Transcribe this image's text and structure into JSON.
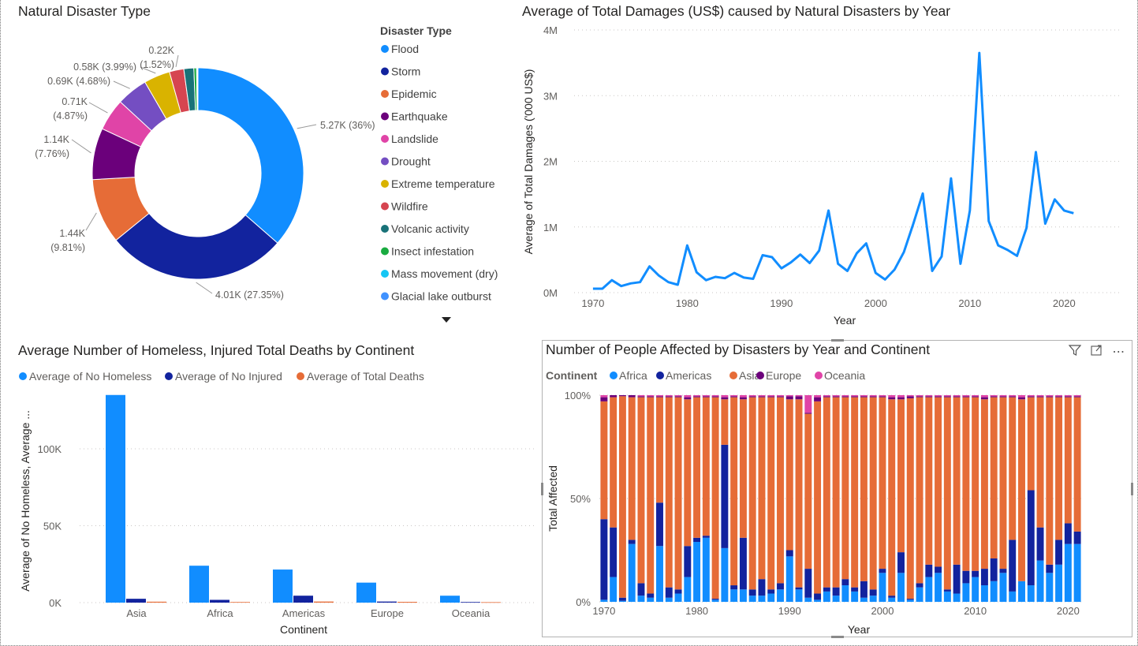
{
  "colors": {
    "flood": "#118DFF",
    "storm": "#12239E",
    "epidemic": "#E66C37",
    "earthquake": "#6B007B",
    "landslide": "#E044A7",
    "drought": "#744EC2",
    "extreme": "#D9B300",
    "wildfire": "#D64550",
    "volcanic": "#197278",
    "insect": "#1AAB40",
    "mass": "#15C6F4",
    "glacial": "#4092FF",
    "africa": "#118DFF",
    "americas": "#12239E",
    "asia": "#E66C37",
    "europe": "#6B007B",
    "oceania": "#E044A7",
    "homeless": "#118DFF",
    "injured": "#12239E",
    "deaths": "#E66C37"
  },
  "donut": {
    "title": "Natural Disaster Type",
    "legend_title": "Disaster Type",
    "legend_more_icon": "caret-down-icon",
    "legend": [
      "Flood",
      "Storm",
      "Epidemic",
      "Earthquake",
      "Landslide",
      "Drought",
      "Extreme temperature",
      "Wildfire",
      "Volcanic activity",
      "Insect infestation",
      "Mass movement (dry)",
      "Glacial lake outburst"
    ],
    "chart_data": {
      "type": "pie",
      "title": "Natural Disaster Type",
      "slices": [
        {
          "name": "Flood",
          "value": 5270,
          "pct": 36
        },
        {
          "name": "Storm",
          "value": 4010,
          "pct": 27.35
        },
        {
          "name": "Epidemic",
          "value": 1440,
          "pct": 9.81
        },
        {
          "name": "Earthquake",
          "value": 1140,
          "pct": 7.76
        },
        {
          "name": "Landslide",
          "value": 710,
          "pct": 4.87
        },
        {
          "name": "Drought",
          "value": 690,
          "pct": 4.68
        },
        {
          "name": "Extreme temperature",
          "value": 580,
          "pct": 3.99
        },
        {
          "name": "Wildfire",
          "value": 320,
          "pct": 2.2
        },
        {
          "name": "Volcanic activity",
          "value": 220,
          "pct": 1.52
        },
        {
          "name": "Insect infestation",
          "value": 60,
          "pct": 0.4
        },
        {
          "name": "Mass movement (dry)",
          "value": 20,
          "pct": 0.15
        },
        {
          "name": "Glacial lake outburst",
          "value": 10,
          "pct": 0.05
        }
      ],
      "labels": [
        {
          "lines": [
            "5.27K (36%)"
          ]
        },
        {
          "lines": [
            "4.01K (27.35%)"
          ]
        },
        {
          "lines": [
            "1.44K",
            "(9.81%)"
          ]
        },
        {
          "lines": [
            "1.14K",
            "(7.76%)"
          ]
        },
        {
          "lines": [
            "0.71K",
            "(4.87%)"
          ]
        },
        {
          "lines": [
            "0.69K (4.68%)"
          ]
        },
        {
          "lines": [
            "0.58K (3.99%)"
          ]
        },
        {
          "lines": [
            "0.22K",
            "(1.52%)"
          ]
        }
      ]
    }
  },
  "line": {
    "title": "Average of Total Damages (US$) caused by Natural Disasters by Year",
    "chart_data": {
      "type": "line",
      "title": "Average of Total Damages (US$) caused by Natural Disasters by Year",
      "xlabel": "Year",
      "ylabel": "Average of Total Damages ('000 US$)",
      "xlim": [
        1968,
        2026
      ],
      "ylim": [
        0,
        4000000
      ],
      "x_ticks": [
        1970,
        1980,
        1990,
        2000,
        2010,
        2020
      ],
      "y_ticks": [
        {
          "v": 0,
          "label": "0M"
        },
        {
          "v": 1000000,
          "label": "1M"
        },
        {
          "v": 2000000,
          "label": "2M"
        },
        {
          "v": 3000000,
          "label": "3M"
        },
        {
          "v": 4000000,
          "label": "4M"
        }
      ],
      "grid": true,
      "x": [
        1970,
        1971,
        1972,
        1973,
        1974,
        1975,
        1976,
        1977,
        1978,
        1979,
        1980,
        1981,
        1982,
        1983,
        1984,
        1985,
        1986,
        1987,
        1988,
        1989,
        1990,
        1991,
        1992,
        1993,
        1994,
        1995,
        1996,
        1997,
        1998,
        1999,
        2000,
        2001,
        2002,
        2003,
        2004,
        2005,
        2006,
        2007,
        2008,
        2009,
        2010,
        2011,
        2012,
        2013,
        2014,
        2015,
        2016,
        2017,
        2018,
        2019,
        2020,
        2021
      ],
      "y": [
        60000,
        60000,
        190000,
        100000,
        140000,
        160000,
        400000,
        260000,
        160000,
        120000,
        720000,
        310000,
        190000,
        240000,
        220000,
        300000,
        230000,
        210000,
        570000,
        540000,
        370000,
        460000,
        580000,
        450000,
        640000,
        1250000,
        440000,
        330000,
        600000,
        750000,
        300000,
        200000,
        350000,
        620000,
        1050000,
        1510000,
        330000,
        550000,
        1740000,
        440000,
        1250000,
        3650000,
        1090000,
        720000,
        650000,
        560000,
        980000,
        2140000,
        1050000,
        1420000,
        1250000,
        1210000
      ]
    }
  },
  "bars": {
    "title": "Average Number of Homeless, Injured Total Deaths by Continent",
    "chart_data": {
      "type": "bar",
      "title": "Average Number of Homeless, Injured Total Deaths by Continent",
      "xlabel": "Continent",
      "ylabel": "Average of No Homeless, Average ...",
      "ylim": [
        0,
        140000
      ],
      "y_ticks": [
        {
          "v": 0,
          "label": "0K"
        },
        {
          "v": 50000,
          "label": "50K"
        },
        {
          "v": 100000,
          "label": "100K"
        }
      ],
      "categories": [
        "Asia",
        "Africa",
        "Americas",
        "Europe",
        "Oceania"
      ],
      "series": [
        {
          "name": "Average of No Homeless",
          "values": [
            135000,
            24000,
            21500,
            13000,
            4500
          ]
        },
        {
          "name": "Average of No Injured",
          "values": [
            2500,
            1800,
            4500,
            700,
            400
          ]
        },
        {
          "name": "Average of Total Deaths",
          "values": [
            600,
            400,
            700,
            500,
            300
          ]
        }
      ]
    }
  },
  "stacked": {
    "title": "Number of People Affected by Disasters by Year and Continent",
    "legend_title": "Continent",
    "icons": {
      "filter": "filter-icon",
      "focus": "focus-mode-icon",
      "more": "more-options-icon"
    },
    "chart_data": {
      "type": "bar",
      "title": "Number of People Affected by Disasters by Year and Continent",
      "stacked": "100%",
      "xlabel": "Year",
      "ylabel": "Total Affected",
      "ylim": [
        0,
        100
      ],
      "y_ticks": [
        {
          "v": 0,
          "label": "0%"
        },
        {
          "v": 50,
          "label": "50%"
        },
        {
          "v": 100,
          "label": "100%"
        }
      ],
      "x_ticks": [
        1970,
        1980,
        1990,
        2000,
        2010,
        2020
      ],
      "categories": [
        1970,
        1971,
        1972,
        1973,
        1974,
        1975,
        1976,
        1977,
        1978,
        1979,
        1980,
        1981,
        1982,
        1983,
        1984,
        1985,
        1986,
        1987,
        1988,
        1989,
        1990,
        1991,
        1992,
        1993,
        1994,
        1995,
        1996,
        1997,
        1998,
        1999,
        2000,
        2001,
        2002,
        2003,
        2004,
        2005,
        2006,
        2007,
        2008,
        2009,
        2010,
        2011,
        2012,
        2013,
        2014,
        2015,
        2016,
        2017,
        2018,
        2019,
        2020,
        2021
      ],
      "series": [
        {
          "name": "Africa",
          "values": [
            1,
            12,
            0.5,
            28,
            3,
            2,
            27,
            2,
            4,
            12,
            29,
            31,
            1,
            26,
            6,
            6,
            3,
            3,
            4,
            6,
            22,
            6,
            2,
            1,
            5,
            3,
            8,
            5,
            2,
            3,
            14,
            2,
            14,
            1,
            7,
            12,
            14,
            5,
            4,
            9,
            12,
            8,
            10,
            14,
            5,
            10,
            8,
            20,
            14,
            18,
            28,
            28
          ]
        },
        {
          "name": "Americas",
          "values": [
            39,
            24,
            1.5,
            2,
            6,
            2,
            21,
            5,
            2,
            15,
            2,
            1,
            0.5,
            50,
            2,
            25,
            3,
            8,
            2,
            3,
            3,
            1,
            14,
            3,
            2,
            4,
            3,
            2,
            8,
            3,
            2,
            1,
            10,
            0.5,
            2,
            6,
            3,
            1,
            14,
            6,
            3,
            8,
            11,
            2,
            25,
            0,
            46,
            16,
            4,
            12,
            10,
            6
          ]
        },
        {
          "name": "Asia",
          "values": [
            57,
            63,
            97,
            69,
            90,
            95,
            51,
            92,
            93,
            71,
            68,
            67,
            97,
            22,
            91,
            67,
            93,
            88,
            93,
            90,
            73,
            91,
            75,
            93,
            92,
            92,
            88,
            92,
            89,
            93,
            83,
            95,
            74,
            97,
            90,
            81,
            82,
            93,
            81,
            84,
            84,
            82,
            78,
            83,
            69,
            88,
            45,
            63,
            81,
            69,
            61,
            65
          ]
        },
        {
          "name": "Europe",
          "values": [
            2,
            1,
            0.5,
            1,
            0.5,
            0.5,
            0.5,
            0.5,
            0.5,
            1,
            0.5,
            0.5,
            0.5,
            1,
            0.5,
            1,
            0.5,
            0.5,
            0.5,
            0.5,
            1.5,
            1.5,
            0.5,
            2,
            0.5,
            0.5,
            0.5,
            0.5,
            0.5,
            0.5,
            0.5,
            1,
            1,
            1,
            0.5,
            0.5,
            0.5,
            0.5,
            0.5,
            0.5,
            0.5,
            1,
            0.5,
            0.5,
            0.5,
            1,
            0.5,
            0.5,
            0.5,
            0.5,
            0.5,
            0.5
          ]
        },
        {
          "name": "Oceania",
          "values": [
            1,
            0,
            0,
            0,
            0.5,
            0.5,
            0.5,
            0.5,
            0.5,
            1,
            0.5,
            0.5,
            0.5,
            1,
            0.5,
            1,
            0.5,
            0.5,
            0.5,
            0.5,
            0.5,
            0.5,
            8.5,
            1,
            0.5,
            0.5,
            0.5,
            0.5,
            0.5,
            0.5,
            0.5,
            1,
            1,
            0.5,
            0.5,
            0.5,
            0.5,
            0.5,
            0.5,
            0.5,
            0.5,
            1,
            0.5,
            0.5,
            0.5,
            1,
            0.5,
            0.5,
            0.5,
            0.5,
            0.5,
            0.5
          ]
        }
      ]
    }
  }
}
